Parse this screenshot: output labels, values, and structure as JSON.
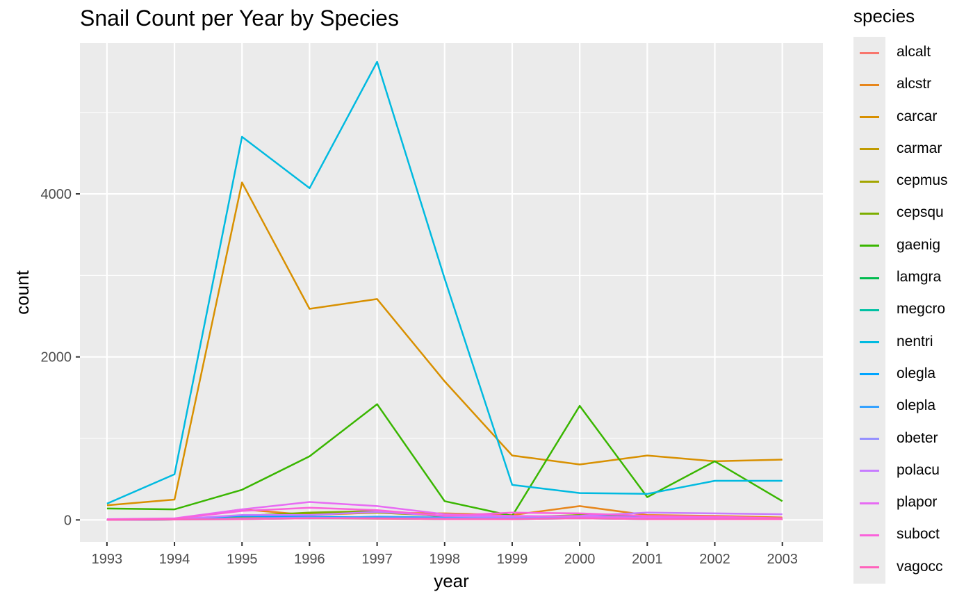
{
  "chart_data": {
    "type": "line",
    "title": "Snail Count per Year by Species",
    "xlabel": "year",
    "ylabel": "count",
    "legend_title": "species",
    "legend_position": "right",
    "grid": true,
    "xlim": [
      1992.6,
      2003.6
    ],
    "ylim": [
      -270,
      5850
    ],
    "x_ticks": [
      "1993",
      "1994",
      "1995",
      "1996",
      "1997",
      "1998",
      "1999",
      "2000",
      "2001",
      "2002",
      "2003"
    ],
    "y_ticks": [
      0,
      2000,
      4000
    ],
    "y_tick_labels": [
      "0",
      "2000",
      "4000"
    ],
    "x": [
      1993,
      1994,
      1995,
      1996,
      1997,
      1998,
      1999,
      2000,
      2001,
      2002,
      2003
    ],
    "series": [
      {
        "name": "alcalt",
        "color": "#F8766D",
        "values": [
          0,
          5,
          30,
          20,
          15,
          10,
          10,
          30,
          20,
          15,
          10
        ]
      },
      {
        "name": "alcstr",
        "color": "#E7861B",
        "values": [
          5,
          10,
          130,
          60,
          90,
          80,
          60,
          170,
          60,
          50,
          30
        ]
      },
      {
        "name": "carcar",
        "color": "#D89000",
        "values": [
          180,
          250,
          4140,
          2590,
          2710,
          1700,
          790,
          680,
          790,
          720,
          740
        ]
      },
      {
        "name": "carmar",
        "color": "#C09B00",
        "values": [
          0,
          5,
          40,
          30,
          20,
          20,
          20,
          40,
          30,
          20,
          10
        ]
      },
      {
        "name": "cepmus",
        "color": "#A3A500",
        "values": [
          0,
          10,
          40,
          80,
          90,
          50,
          30,
          60,
          40,
          30,
          20
        ]
      },
      {
        "name": "cepsqu",
        "color": "#7CAE00",
        "values": [
          0,
          10,
          50,
          90,
          110,
          40,
          20,
          60,
          30,
          20,
          10
        ]
      },
      {
        "name": "gaenig",
        "color": "#39B600",
        "values": [
          140,
          130,
          370,
          780,
          1420,
          230,
          50,
          1400,
          280,
          720,
          230
        ]
      },
      {
        "name": "lamgra",
        "color": "#00BB4E",
        "values": [
          0,
          5,
          20,
          30,
          30,
          20,
          20,
          30,
          20,
          20,
          10
        ]
      },
      {
        "name": "megcro",
        "color": "#00C1A3",
        "values": [
          0,
          5,
          10,
          20,
          20,
          10,
          10,
          20,
          10,
          10,
          10
        ]
      },
      {
        "name": "nentri",
        "color": "#00BAE0",
        "values": [
          200,
          560,
          4700,
          4070,
          5620,
          2960,
          430,
          330,
          320,
          480,
          480
        ]
      },
      {
        "name": "olegla",
        "color": "#00A5FF",
        "values": [
          0,
          10,
          50,
          40,
          30,
          20,
          20,
          50,
          30,
          20,
          10
        ]
      },
      {
        "name": "olepla",
        "color": "#35A2FF",
        "values": [
          0,
          5,
          20,
          20,
          40,
          30,
          20,
          30,
          20,
          10,
          10
        ]
      },
      {
        "name": "obeter",
        "color": "#9590FF",
        "values": [
          0,
          5,
          20,
          30,
          20,
          20,
          30,
          40,
          20,
          20,
          10
        ]
      },
      {
        "name": "polacu",
        "color": "#C77CFF",
        "values": [
          5,
          10,
          60,
          60,
          100,
          50,
          40,
          50,
          90,
          80,
          70
        ]
      },
      {
        "name": "plapor",
        "color": "#E76BF3",
        "values": [
          10,
          20,
          130,
          220,
          170,
          70,
          50,
          40,
          30,
          30,
          20
        ]
      },
      {
        "name": "suboct",
        "color": "#FA62DB",
        "values": [
          5,
          15,
          110,
          150,
          120,
          50,
          90,
          80,
          50,
          40,
          20
        ]
      },
      {
        "name": "vagocc",
        "color": "#FF62BC",
        "values": [
          0,
          5,
          10,
          20,
          20,
          10,
          10,
          20,
          10,
          10,
          10
        ]
      }
    ]
  }
}
